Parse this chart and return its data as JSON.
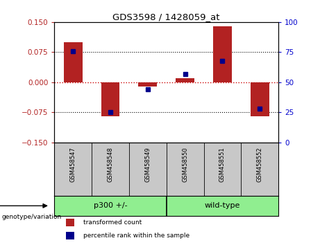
{
  "title": "GDS3598 / 1428059_at",
  "samples": [
    "GSM458547",
    "GSM458548",
    "GSM458549",
    "GSM458550",
    "GSM458551",
    "GSM458552"
  ],
  "red_bars": [
    0.1,
    -0.085,
    -0.01,
    0.01,
    0.14,
    -0.085
  ],
  "blue_dots": [
    76,
    25,
    44,
    57,
    68,
    28
  ],
  "ylim_left": [
    -0.15,
    0.15
  ],
  "ylim_right": [
    0,
    100
  ],
  "yticks_left": [
    -0.15,
    -0.075,
    0,
    0.075,
    0.15
  ],
  "yticks_right": [
    0,
    25,
    50,
    75,
    100
  ],
  "bar_color": "#B22222",
  "dot_color": "#00008B",
  "group_label": "genotype/variation",
  "group1_label": "p300 +/-",
  "group2_label": "wild-type",
  "group_color": "#90EE90",
  "label_bg_color": "#C8C8C8",
  "legend_red_label": "transformed count",
  "legend_blue_label": "percentile rank within the sample",
  "zero_line_color": "#CC0000",
  "bg_color": "#FFFFFF"
}
